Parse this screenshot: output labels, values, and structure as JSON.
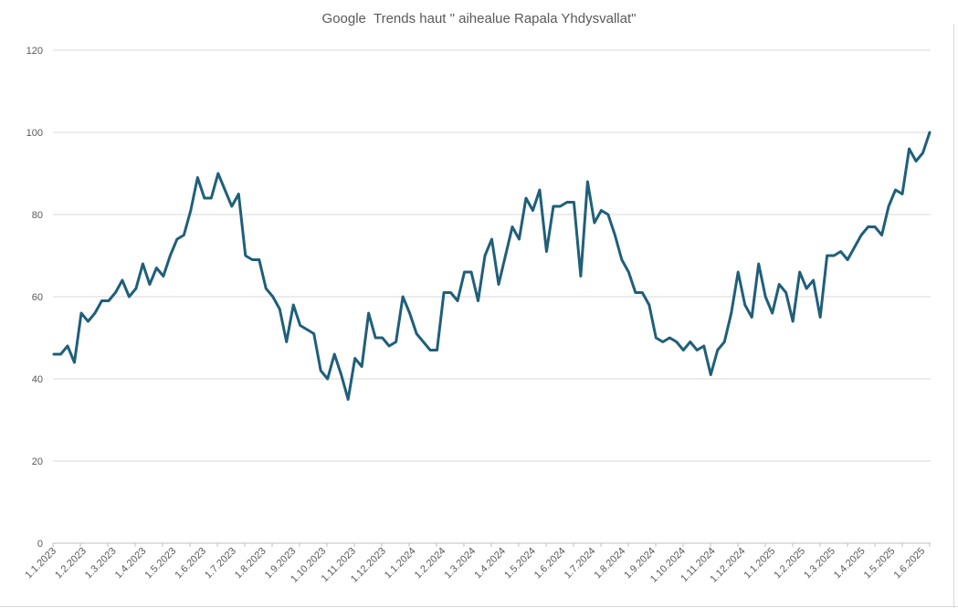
{
  "chart_data": {
    "type": "line",
    "title": "Google  Trends haut \" aihealue Rapala Yhdysvallat\"",
    "xlabel": "",
    "ylabel": "",
    "ylim": [
      0,
      120
    ],
    "yticks": [
      "0",
      "20",
      "40",
      "60",
      "80",
      "100",
      "120"
    ],
    "grid": true,
    "legend": "none",
    "color": "#1f5f7a",
    "x_tick_labels": [
      "1.1.2023",
      "1.2.2023",
      "1.3.2023",
      "1.4.2023",
      "1.5.2023",
      "1.6.2023",
      "1.7.2023",
      "1.8.2023",
      "1.9.2023",
      "1.10.2023",
      "1.11.2023",
      "1.12.2023",
      "1.1.2024",
      "1.2.2024",
      "1.3.2024",
      "1.4.2024",
      "1.5.2024",
      "1.6.2024",
      "1.7.2024",
      "1.8.2024",
      "1.9.2024",
      "1.10.2024",
      "1.11.2024",
      "1.12.2024",
      "1.1.2025",
      "1.2.2025",
      "1.3.2025",
      "1.4.2025",
      "1.5.2025",
      "1.6.2025"
    ],
    "series": [
      {
        "values": [
          46,
          46,
          48,
          44,
          56,
          54,
          56,
          59,
          59,
          61,
          64,
          60,
          62,
          68,
          63,
          67,
          65,
          70,
          74,
          75,
          81,
          89,
          84,
          84,
          90,
          86,
          82,
          85,
          70,
          69,
          69,
          62,
          60,
          57,
          49,
          58,
          53,
          52,
          51,
          42,
          40,
          46,
          41,
          35,
          45,
          43,
          56,
          50,
          50,
          48,
          49,
          60,
          56,
          51,
          49,
          47,
          47,
          61,
          61,
          59,
          66,
          66,
          59,
          70,
          74,
          63,
          70,
          77,
          74,
          84,
          81,
          86,
          71,
          82,
          82,
          83,
          83,
          65,
          88,
          78,
          81,
          80,
          75,
          69,
          66,
          61,
          61,
          58,
          50,
          49,
          50,
          49,
          47,
          49,
          47,
          48,
          41,
          47,
          49,
          56,
          66,
          58,
          55,
          68,
          60,
          56,
          63,
          61,
          54,
          66,
          62,
          64,
          55,
          70,
          70,
          71,
          69,
          72,
          75,
          77,
          77,
          75,
          82,
          86,
          85,
          96,
          93,
          95,
          100
        ]
      }
    ]
  }
}
